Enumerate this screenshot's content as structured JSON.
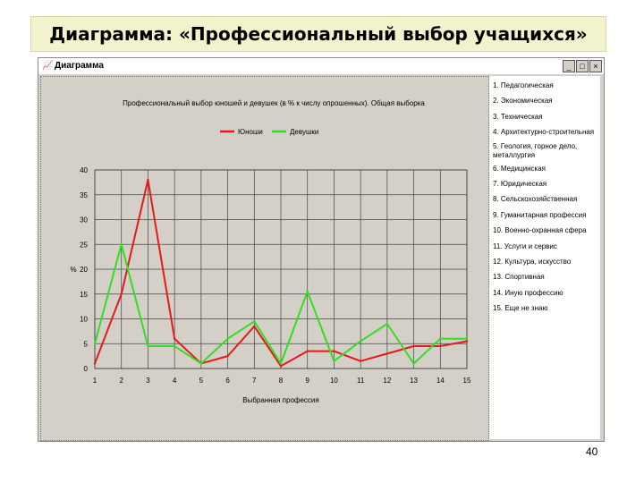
{
  "slide": {
    "title": "Диаграмма: «Профессиональный выбор учащихся»",
    "page_number": "40"
  },
  "window": {
    "title": "Диаграмма",
    "buttons": [
      "_",
      "□",
      "×"
    ]
  },
  "professions": [
    "1. Педагогическая",
    "2. Экономическая",
    "3. Техническая",
    "4. Архитектурно-строительная",
    "5. Геология, горное дело, металлургия",
    "6. Медицинская",
    "7. Юридическая",
    "8. Сельскохозяйственная",
    "9. Гуманитарная профессия",
    "10. Военно-охранная сфера",
    "11. Услуги и сервис",
    "12. Культура, искусство",
    "13. Спортивная",
    "14. Иную профессию",
    "15. Еще не знаю"
  ],
  "chart_data": {
    "type": "line",
    "title": "Профессиональный выбор юношей и девушек (в % к числу опрошенных). Общая выборка",
    "xlabel": "Выбранная профессия",
    "ylabel": "%",
    "x": [
      1,
      2,
      3,
      4,
      5,
      6,
      7,
      8,
      9,
      10,
      11,
      12,
      13,
      14,
      15
    ],
    "ylim": [
      0,
      40
    ],
    "yticks": [
      0,
      5,
      10,
      15,
      20,
      25,
      30,
      35,
      40
    ],
    "grid": true,
    "legend_position": "top",
    "series": [
      {
        "name": "Юноши",
        "color": "#e41a1a",
        "values": [
          1,
          15,
          38,
          6,
          1,
          2.5,
          8.5,
          0.5,
          3.5,
          3.5,
          1.5,
          3,
          4.5,
          4.5,
          5.5
        ]
      },
      {
        "name": "Девушки",
        "color": "#33dd22",
        "values": [
          5,
          25,
          4.5,
          4.5,
          1,
          6,
          9.5,
          1,
          15.5,
          1.5,
          5.5,
          9,
          1,
          6,
          6
        ]
      }
    ]
  }
}
